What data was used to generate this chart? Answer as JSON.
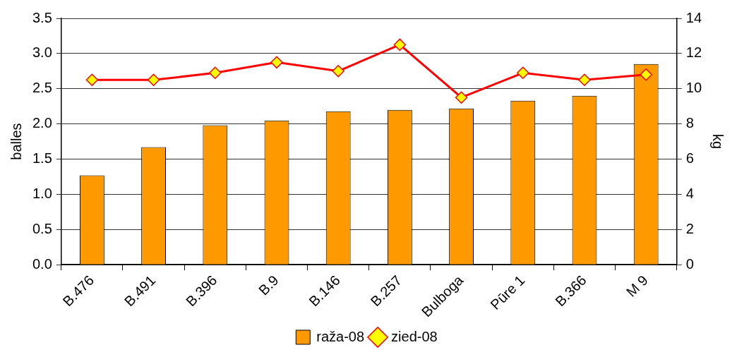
{
  "chart_data": {
    "type": "bar",
    "ylabel": "balles",
    "y2label": "kg",
    "categories": [
      "B.476",
      "B.491",
      "B.396",
      "B.9",
      "B.146",
      "B.257",
      "Bulboga",
      "Pūre 1",
      "B.366",
      "M 9"
    ],
    "series": [
      {
        "name": "raža-08",
        "color": "#ff9900",
        "values": [
          1.27,
          1.67,
          1.98,
          2.05,
          2.18,
          2.2,
          2.22,
          2.33,
          2.4,
          2.85
        ]
      },
      {
        "name": "zied-08",
        "type": "line",
        "axis": "y2",
        "color": "#ff0000",
        "marker": "diamond",
        "values": [
          10.5,
          10.5,
          10.9,
          11.5,
          11.0,
          12.5,
          9.5,
          10.9,
          10.5,
          10.8
        ]
      }
    ],
    "ylim": [
      0,
      3.5
    ],
    "yticks": [
      {
        "value": 0,
        "label": "0.0"
      },
      0.5,
      {
        "value": 1,
        "label": "1.0"
      },
      1.5,
      {
        "value": 2,
        "label": "2.0"
      },
      2.5,
      {
        "value": 3,
        "label": "3.0"
      },
      3.5
    ],
    "y2lim": [
      0,
      14
    ],
    "y2ticks": [
      0,
      2,
      4,
      6,
      8,
      10,
      12,
      14
    ],
    "grid": "y",
    "legend": "bottom"
  }
}
